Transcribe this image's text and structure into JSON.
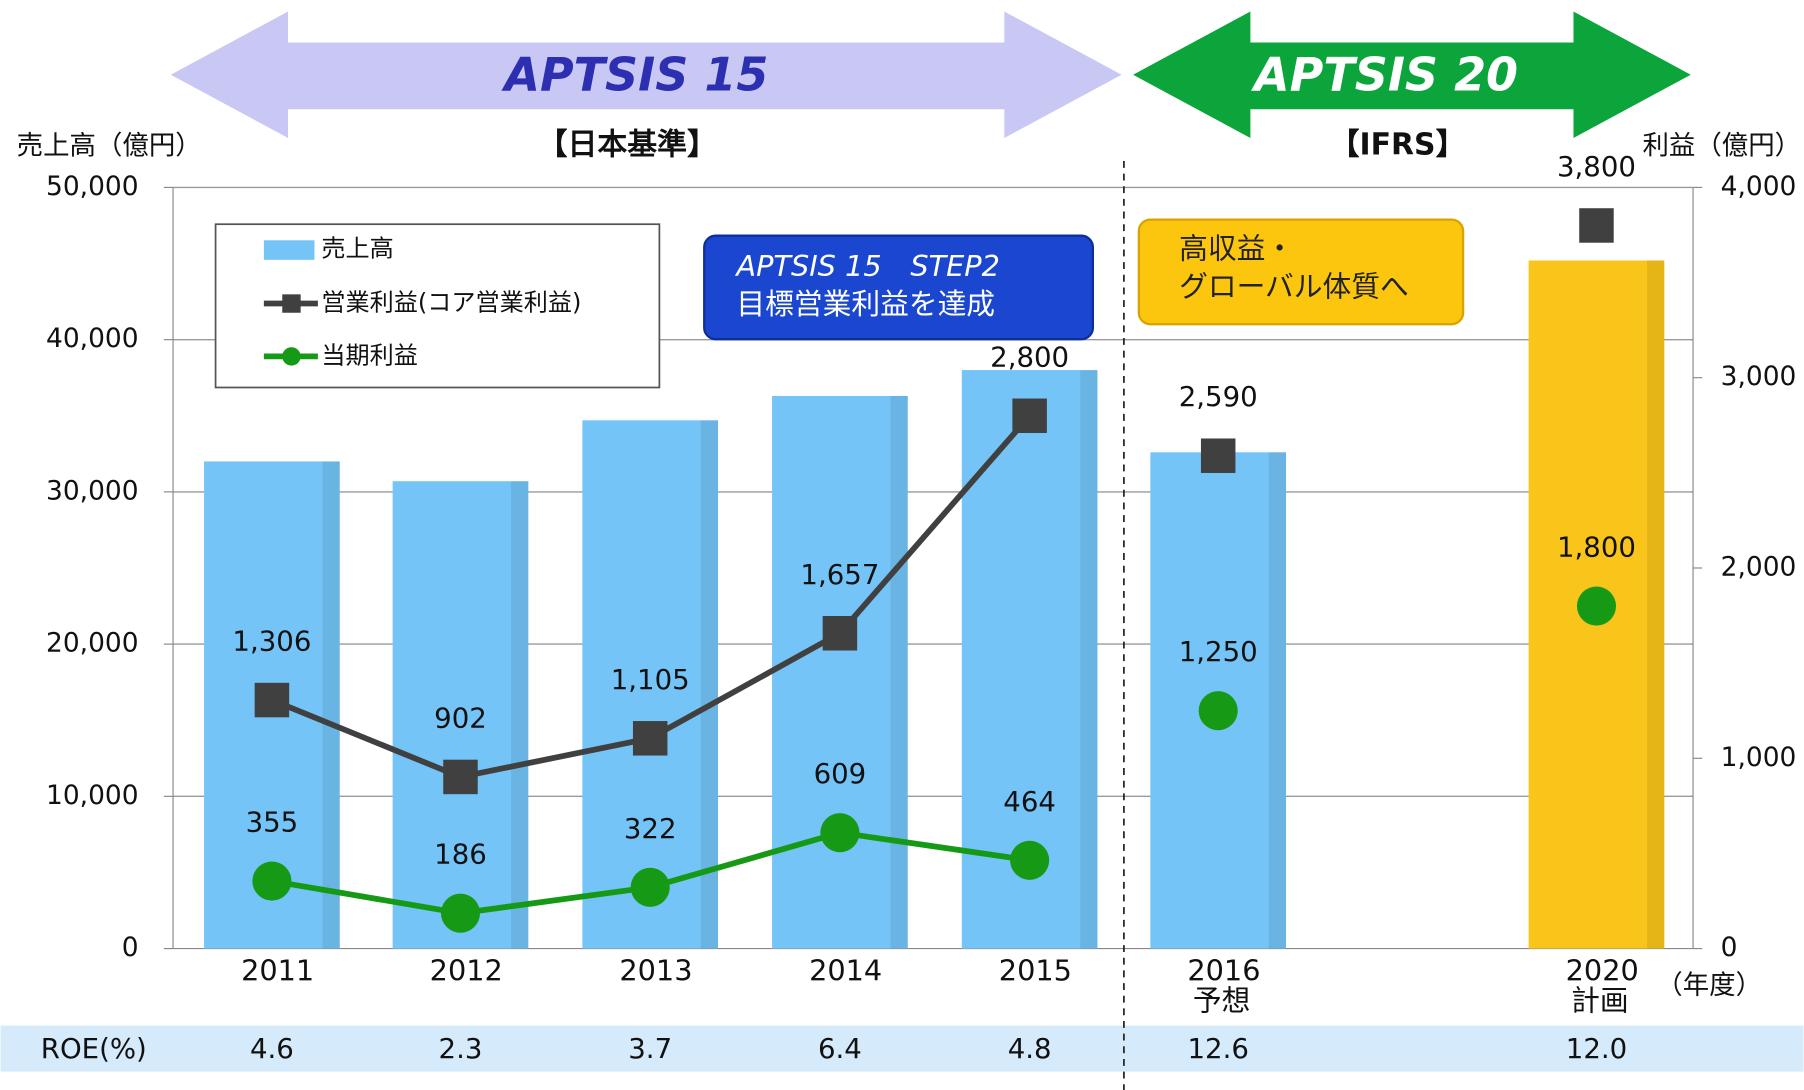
{
  "chart_data": {
    "type": "bar",
    "y_label": "売上高（億円）",
    "y2_label": "利益（億円）",
    "x_unit": "（年度）",
    "categories": [
      "2011",
      "2012",
      "2013",
      "2014",
      "2015",
      "2016",
      "2020"
    ],
    "category_notes": [
      null,
      null,
      null,
      null,
      null,
      "予想",
      "計画"
    ],
    "ylim": [
      0,
      50000
    ],
    "yticks": [
      0,
      {
        "value": 10000,
        "label": "10,000"
      },
      {
        "value": 20000,
        "label": "20,000"
      },
      {
        "value": 30000,
        "label": "30,000"
      },
      {
        "value": 40000,
        "label": "40,000"
      },
      {
        "value": 50000,
        "label": "50,000"
      }
    ],
    "y2lim": [
      0,
      4000
    ],
    "y2ticks": [
      0,
      {
        "value": 1000,
        "label": "1,000"
      },
      {
        "value": 2000,
        "label": "2,000"
      },
      {
        "value": 3000,
        "label": "3,000"
      },
      {
        "value": 4000,
        "label": "4,000"
      }
    ],
    "grid": true,
    "series": [
      {
        "name": "売上高",
        "type": "bar",
        "colors": [
          "#74c4f7",
          "#74c4f7",
          "#74c4f7",
          "#74c4f7",
          "#74c4f7",
          "#74c4f7",
          "#f9c51a"
        ],
        "values": [
          32000,
          30700,
          34700,
          36300,
          38000,
          32600,
          45200
        ]
      },
      {
        "name": "営業利益(コア営業利益)",
        "type": "line",
        "axis": "y2",
        "color": "#404040",
        "marker": "square",
        "values": [
          1306,
          902,
          1105,
          1657,
          2800,
          2590,
          3800
        ],
        "value_labels": [
          "1,306",
          "902",
          "1,105",
          "1,657",
          "2,800",
          "2,590",
          "3,800"
        ]
      },
      {
        "name": "当期利益",
        "type": "line",
        "axis": "y2",
        "color": "#169a16",
        "marker": "circle",
        "values": [
          355,
          186,
          322,
          609,
          464,
          1250,
          1800
        ],
        "value_labels": [
          "355",
          "186",
          "322",
          "609",
          "464",
          "1,250",
          "1,800"
        ]
      }
    ],
    "periods": [
      {
        "name": "APTSIS 15",
        "standard": "【日本基準】",
        "color": "#c9c8f5"
      },
      {
        "name": "APTSIS 20",
        "standard": "【IFRS】",
        "color": "#0ba53c"
      }
    ],
    "annotations": [
      {
        "lines": [
          "APTSIS 15　STEP2",
          "目標営業利益を達成"
        ],
        "color": "#1b47d0"
      },
      {
        "lines": [
          "高収益・",
          "グローバル体質へ"
        ],
        "color": "#fcc60e"
      }
    ],
    "table": {
      "label": "ROE(%)",
      "values": [
        4.6,
        2.3,
        3.7,
        6.4,
        4.8,
        12.6,
        12.0
      ],
      "value_labels": [
        "4.6",
        "2.3",
        "3.7",
        "6.4",
        "4.8",
        "12.6",
        "12.0"
      ]
    }
  }
}
